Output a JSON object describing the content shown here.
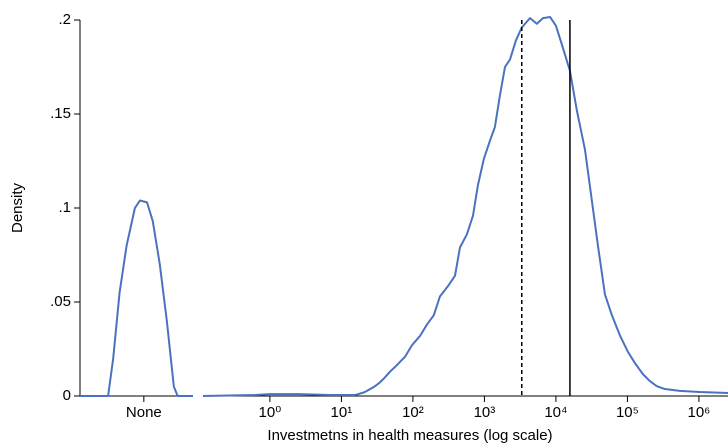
{
  "chart_data": {
    "type": "line",
    "ylabel": "Density",
    "xlabel": "Investmetns in health measures (log scale)",
    "ylim": [
      0,
      0.2
    ],
    "yticks": [
      0,
      {
        "value": 0.05,
        "label": ".05"
      },
      {
        "value": 0.1,
        "label": ".1"
      },
      {
        "value": 0.15,
        "label": ".15"
      },
      {
        "value": 0.2,
        "label": ".2"
      }
    ],
    "panels": [
      {
        "xlim": [
          -1,
          0.77
        ],
        "log": false,
        "xticks": [
          {
            "value": 0,
            "label": "None"
          }
        ],
        "series": [
          {
            "color": "#4a72c0",
            "x": [
              -1,
              -0.56,
              -0.48,
              -0.38,
              -0.27,
              -0.14,
              -0.06,
              0.05,
              0.14,
              0.25,
              0.36,
              0.47,
              0.53,
              0.77
            ],
            "values": [
              0,
              0,
              0.02,
              0.055,
              0.08,
              0.1,
              0.104,
              0.103,
              0.093,
              0.07,
              0.04,
              0.005,
              0,
              0
            ]
          }
        ],
        "vlines": []
      },
      {
        "xlim": [
          0.116,
          2550000
        ],
        "log": true,
        "xticks": [
          {
            "value": 1,
            "label": "10⁰"
          },
          {
            "value": 10,
            "label": "10¹"
          },
          {
            "value": 100,
            "label": "10²"
          },
          {
            "value": 1000,
            "label": "10³"
          },
          {
            "value": 10000,
            "label": "10⁴"
          },
          {
            "value": 100000,
            "label": "10⁵"
          },
          {
            "value": 1000000,
            "label": "10⁶"
          }
        ],
        "series": [
          {
            "color": "#4a72c0",
            "x": [
              0.116,
              0.62,
              1,
              2.6,
              6.9,
              15.5,
              21,
              29,
              34,
              40,
              48,
              60,
              78,
              97,
              126,
              157,
              196,
              239,
              310,
              388,
              455,
              569,
              693,
              810,
              980,
              1200,
              1400,
              1650,
              1940,
              2280,
              2750,
              3330,
              4340,
              5400,
              6600,
              8270,
              10000,
              12100,
              15700,
              19600,
              25500,
              31800,
              38700,
              48500,
              60600,
              79000,
              102000,
              127000,
              164000,
              205000,
              256000,
              334000,
              540000,
              1030000,
              2550000
            ],
            "values": [
              0,
              0.0005,
              0.001,
              0.001,
              0.0005,
              0.0005,
              0.002,
              0.005,
              0.007,
              0.0096,
              0.013,
              0.0165,
              0.021,
              0.027,
              0.032,
              0.038,
              0.043,
              0.053,
              0.0585,
              0.064,
              0.079,
              0.086,
              0.096,
              0.112,
              0.126,
              0.136,
              0.143,
              0.16,
              0.175,
              0.179,
              0.189,
              0.196,
              0.201,
              0.198,
              0.201,
              0.2016,
              0.197,
              0.187,
              0.173,
              0.152,
              0.131,
              0.104,
              0.08,
              0.054,
              0.043,
              0.032,
              0.0234,
              0.0176,
              0.0117,
              0.008,
              0.0053,
              0.0037,
              0.0027,
              0.0021,
              0.0016
            ]
          }
        ],
        "vlines": [
          {
            "value": 3330,
            "style": "dashed"
          },
          {
            "value": 15700,
            "style": "solid"
          }
        ]
      }
    ]
  }
}
